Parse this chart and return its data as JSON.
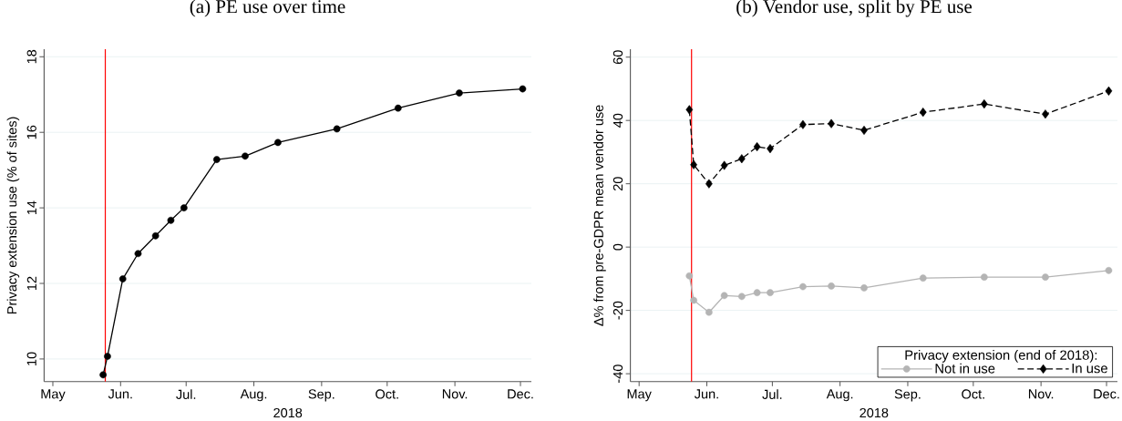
{
  "chart_data": [
    {
      "type": "line",
      "title": "(a) PE use over time",
      "xlabel": "2018",
      "ylabel": "Privacy extension use (% of sites)",
      "x": [
        "2018-05-24",
        "2018-05-26",
        "2018-06-02",
        "2018-06-09",
        "2018-06-17",
        "2018-06-24",
        "2018-06-30",
        "2018-07-15",
        "2018-07-28",
        "2018-08-12",
        "2018-09-08",
        "2018-10-06",
        "2018-11-03",
        "2018-12-02"
      ],
      "series": [
        {
          "color": "#000000",
          "values": [
            9.58,
            10.07,
            12.12,
            12.79,
            13.26,
            13.67,
            14.0,
            15.28,
            15.37,
            15.73,
            16.09,
            16.64,
            17.04,
            17.15
          ]
        }
      ],
      "xlim": [
        "2018-04-27",
        "2018-12-06"
      ],
      "ylim": [
        9.4,
        18.2
      ],
      "xticks": [
        {
          "value": "2018-05-01",
          "label": "May"
        },
        {
          "value": "2018-06-01",
          "label": "Jun."
        },
        {
          "value": "2018-07-01",
          "label": "Jul."
        },
        {
          "value": "2018-08-01",
          "label": "Aug."
        },
        {
          "value": "2018-09-01",
          "label": "Sep."
        },
        {
          "value": "2018-10-01",
          "label": "Oct."
        },
        {
          "value": "2018-11-01",
          "label": "Nov."
        },
        {
          "value": "2018-12-01",
          "label": "Dec."
        }
      ],
      "yticks": [
        10,
        12,
        14,
        16,
        18
      ],
      "grid": "y",
      "marker": "circle",
      "line_style": "solid",
      "ref_lines": [
        {
          "axis": "x",
          "value": "2018-05-25",
          "color": "#ff0000"
        }
      ]
    },
    {
      "type": "line",
      "title": "(b) Vendor use, split by PE use",
      "xlabel": "2018",
      "ylabel": "Δ% from pre-GDPR mean vendor use",
      "legend_title": "Privacy extension (end of 2018):",
      "x": [
        "2018-05-24",
        "2018-05-26",
        "2018-06-02",
        "2018-06-09",
        "2018-06-17",
        "2018-06-24",
        "2018-06-30",
        "2018-07-15",
        "2018-07-28",
        "2018-08-12",
        "2018-09-08",
        "2018-10-06",
        "2018-11-03",
        "2018-12-02"
      ],
      "series": [
        {
          "name": "Not in use",
          "color": "#b4b4b4",
          "marker": "circle",
          "line_style": "solid",
          "values": [
            -9.1,
            -16.8,
            -20.6,
            -15.3,
            -15.6,
            -14.4,
            -14.4,
            -12.5,
            -12.3,
            -12.9,
            -9.8,
            -9.5,
            -9.5,
            -7.4
          ]
        },
        {
          "name": "In use",
          "color": "#000000",
          "marker": "diamond",
          "line_style": "dashed",
          "values": [
            43.4,
            26.0,
            20.0,
            25.8,
            27.9,
            31.7,
            31.1,
            38.7,
            39.0,
            36.9,
            42.6,
            45.2,
            42.0,
            49.3
          ]
        }
      ],
      "xlim": [
        "2018-04-27",
        "2018-12-06"
      ],
      "ylim": [
        -42.5,
        62.5
      ],
      "xticks": [
        {
          "value": "2018-05-01",
          "label": "May"
        },
        {
          "value": "2018-06-01",
          "label": "Jun."
        },
        {
          "value": "2018-07-01",
          "label": "Jul."
        },
        {
          "value": "2018-08-01",
          "label": "Aug."
        },
        {
          "value": "2018-09-01",
          "label": "Sep."
        },
        {
          "value": "2018-10-01",
          "label": "Oct."
        },
        {
          "value": "2018-11-01",
          "label": "Nov."
        },
        {
          "value": "2018-12-01",
          "label": "Dec."
        }
      ],
      "yticks": [
        -40,
        -20,
        0,
        20,
        40,
        60
      ],
      "grid": "y",
      "legend": "bottom right",
      "ref_lines": [
        {
          "axis": "x",
          "value": "2018-05-25",
          "color": "#ff0000"
        }
      ]
    }
  ]
}
